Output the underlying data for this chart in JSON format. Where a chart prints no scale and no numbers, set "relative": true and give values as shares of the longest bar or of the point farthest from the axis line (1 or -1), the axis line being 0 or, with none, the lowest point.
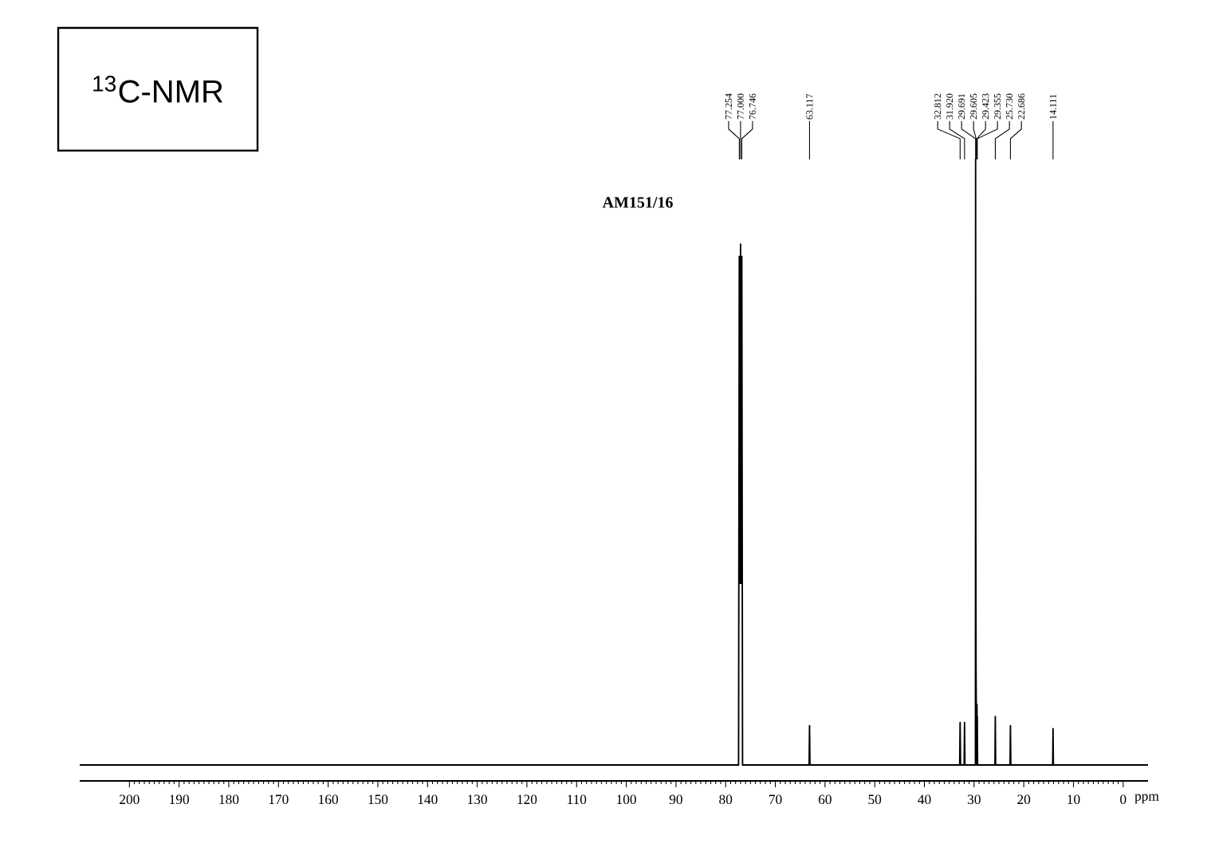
{
  "chart_data": {
    "type": "line",
    "title": "$^{13}$C-NMR",
    "subtitle": "AM151/16",
    "xlabel": "ppm",
    "relative": true,
    "xlim": [
      210,
      -5
    ],
    "xticks": [
      200,
      190,
      180,
      170,
      160,
      150,
      140,
      130,
      120,
      110,
      100,
      90,
      80,
      70,
      60,
      50,
      40,
      30,
      20,
      10,
      0
    ],
    "grid": false,
    "marker": "none",
    "line_style": "solid",
    "series": [
      {
        "color": "#000000",
        "x": [
          210,
          77.4,
          77.254,
          77.13,
          77.0,
          76.87,
          76.746,
          76.6,
          63.2,
          63.117,
          63.03,
          32.9,
          32.812,
          32.72,
          32.0,
          31.92,
          31.84,
          29.73,
          29.691,
          29.65,
          29.605,
          29.5,
          29.423,
          29.39,
          29.355,
          29.3,
          25.8,
          25.73,
          25.66,
          22.76,
          22.686,
          22.61,
          14.18,
          14.111,
          14.04,
          -5
        ],
        "values": [
          0,
          0,
          0.84,
          0.3,
          0.86,
          0.3,
          0.84,
          0,
          0,
          0.065,
          0,
          0,
          0.07,
          0,
          0,
          0.07,
          0,
          0,
          1.0,
          0.4,
          0.16,
          0,
          0.1,
          0.05,
          0.08,
          0,
          0,
          0.08,
          0,
          0,
          0.065,
          0,
          0,
          0.06,
          0,
          0
        ]
      }
    ],
    "annotations": [
      {
        "text": "77.254",
        "x": 77.254
      },
      {
        "text": "77.000",
        "x": 77.0
      },
      {
        "text": "76.746",
        "x": 76.746
      },
      {
        "text": "63.117",
        "x": 63.117
      },
      {
        "text": "32.812",
        "x": 32.812
      },
      {
        "text": "31.920",
        "x": 31.92
      },
      {
        "text": "29.691",
        "x": 29.691
      },
      {
        "text": "29.605",
        "x": 29.605
      },
      {
        "text": "29.423",
        "x": 29.423
      },
      {
        "text": "29.355",
        "x": 29.355
      },
      {
        "text": "25.730",
        "x": 25.73
      },
      {
        "text": "22.686",
        "x": 22.686
      },
      {
        "text": "14.111",
        "x": 14.111
      }
    ]
  }
}
